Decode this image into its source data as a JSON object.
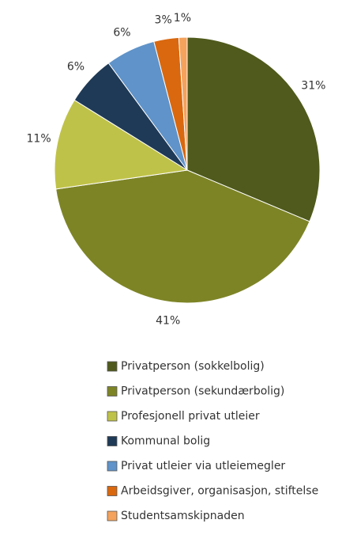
{
  "chart_data": {
    "type": "pie",
    "categories": [
      "Privatperson (sokkelbolig)",
      "Privatperson (sekundærbolig)",
      "Profesjonell privat utleier",
      "Kommunal bolig",
      "Privat utleier via utleiemegler",
      "Arbeidsgiver, organisasjon, stiftelse",
      "Studentsamskipnaden"
    ],
    "values": [
      31,
      41,
      11,
      6,
      6,
      3,
      1
    ],
    "value_labels": [
      "31%",
      "41%",
      "11%",
      "6%",
      "6%",
      "3%",
      "1%"
    ],
    "colors": [
      "#4f5a1c",
      "#7d8426",
      "#bfc248",
      "#1f3a56",
      "#5f93c9",
      "#d9680f",
      "#f4a25c"
    ]
  }
}
